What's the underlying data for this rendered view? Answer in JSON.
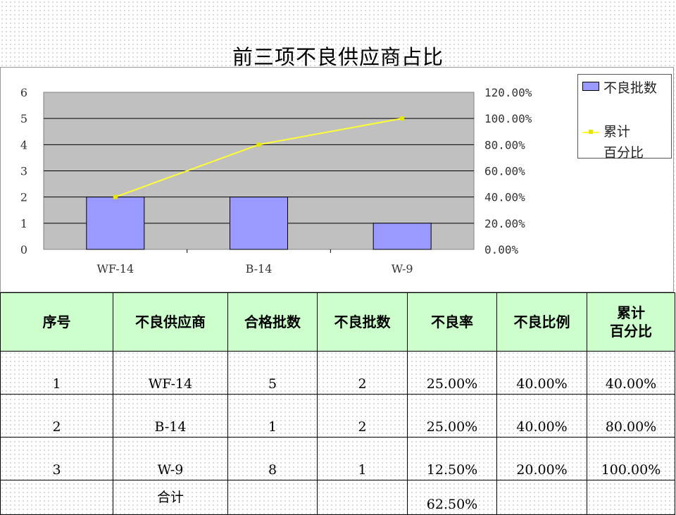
{
  "title": "前三项不良供应商占比",
  "chart_data": {
    "type": "bar",
    "title": "前三项不良供应商占比",
    "categories": [
      "WF-14",
      "B-14",
      "W-9"
    ],
    "series": [
      {
        "name": "不良批数",
        "type": "bar",
        "axis": "left",
        "values": [
          2,
          2,
          1
        ]
      },
      {
        "name": "累计\n百分比",
        "type": "line",
        "axis": "right",
        "values": [
          40,
          80,
          100
        ]
      }
    ],
    "y_left": {
      "range": [
        0,
        6
      ],
      "ticks": [
        "0",
        "1",
        "2",
        "3",
        "4",
        "5",
        "6"
      ]
    },
    "y_right": {
      "range": [
        0,
        120
      ],
      "ticks": [
        "0.00%",
        "20.00%",
        "40.00%",
        "60.00%",
        "80.00%",
        "100.00%",
        "120.00%"
      ]
    },
    "grid": true,
    "legend_position": "right",
    "colors": {
      "bar": "#9999ff",
      "line": "#ffff33",
      "plot_bg": "#c0c0c0"
    }
  },
  "table": {
    "headers": [
      "序号",
      "不良供应商",
      "合格批数",
      "不良批数",
      "不良率",
      "不良比例",
      "累计\n百分比"
    ],
    "rows": [
      [
        "1",
        "WF-14",
        "5",
        "2",
        "25.00%",
        "40.00%",
        "40.00%"
      ],
      [
        "2",
        "B-14",
        "1",
        "2",
        "25.00%",
        "40.00%",
        "80.00%"
      ],
      [
        "3",
        "W-9",
        "8",
        "1",
        "12.50%",
        "20.00%",
        "100.00%"
      ]
    ],
    "total": {
      "label": "合计",
      "defect_rate": "62.50%"
    },
    "header_bg": "#ccffcc"
  }
}
